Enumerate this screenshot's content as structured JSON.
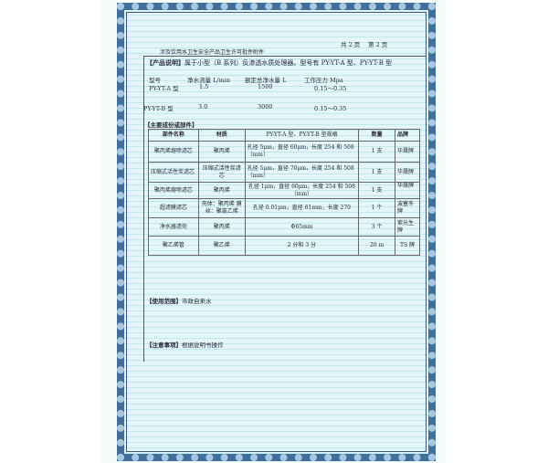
{
  "page_indicator": {
    "total": "共 2 页",
    "current": "第 2 页"
  },
  "doc_title": "涉及饮用水卫生安全产品卫生许可批件附件",
  "product_desc": {
    "label": "【产品说明】",
    "text": "属于小型（B 系列）反渗透水质处理器。型号有 PY-YT-A 型、PY-YT-B 型"
  },
  "spec": {
    "headers": [
      "型号",
      "净水流量 L/min",
      "额定总净水量 L",
      "工作压力 Mpa"
    ],
    "rows": [
      [
        "PY-YT-A 型",
        "1.5",
        "1500",
        "0.15～0.35"
      ],
      [
        "PY-YT-B 型",
        "3.0",
        "3000",
        "0.15～0.35"
      ]
    ]
  },
  "components": {
    "label": "【主要成份或部件】",
    "headers": [
      "部件名称",
      "材质",
      "PY-YT-A 型、PY-YT-B 型规格",
      "数量",
      "品牌"
    ],
    "rows": [
      [
        "聚丙烯熔喷滤芯",
        "聚丙烯",
        "孔径 5μm，直径 60μm，长度 254 和 508（mm）",
        "1 支",
        "华晟牌"
      ],
      [
        "压缩式活性炭滤芯",
        "压缩式活性炭滤芯",
        "孔径 5μm，直径 70μm，长度 254 和 508（mm）",
        "1 支",
        "华晟牌"
      ],
      [
        "聚丙烯熔喷滤芯",
        "聚丙烯",
        "孔径 1μm，直径 60μm，长度 254 和 508（mm）",
        "1 支",
        "华晟牌"
      ],
      [
        "超滤膜滤芯",
        "壳体：聚丙烯 膜丝：聚氯乙烯",
        "孔径 0.01μm，直径 61mm，长度 270",
        "1 个",
        "波塞冬牌"
      ],
      [
        "净水器滤壳",
        "聚丙烯",
        "Φ65mm",
        "3 个",
        "紫光生牌"
      ],
      [
        "聚乙烯管",
        "聚乙烯",
        "2 分和 3 分",
        "20 m",
        "TS 牌"
      ]
    ]
  },
  "usage": {
    "label": "【使用范围】",
    "text": "市政自来水"
  },
  "notes": {
    "label": "【注意事项】",
    "text": "根据说明书操作"
  }
}
